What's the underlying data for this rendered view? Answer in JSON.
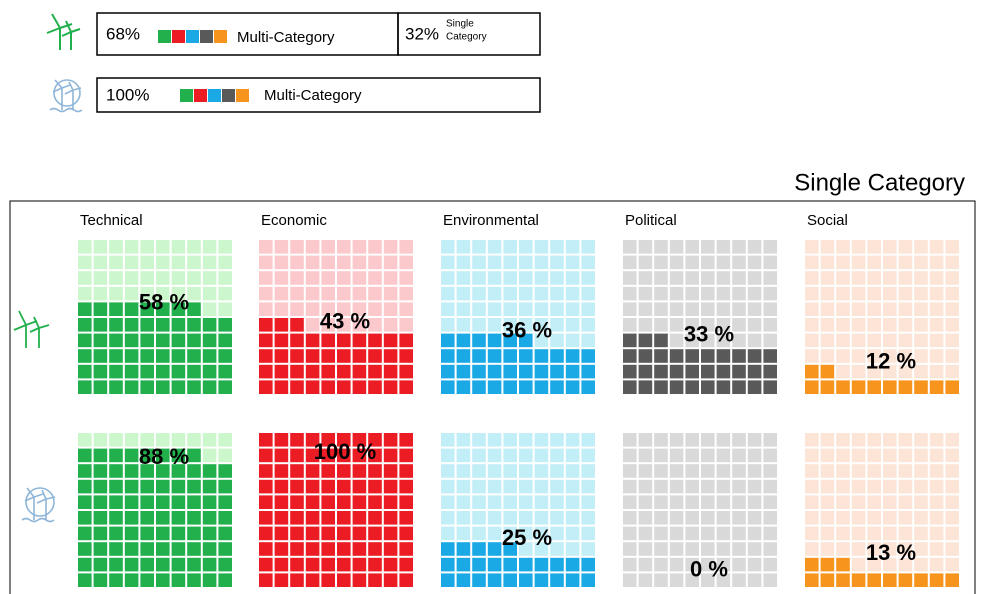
{
  "summary": [
    {
      "percent": "68%",
      "category": "Multi-Category"
    },
    {
      "percent": "32%",
      "category_line1": "Single",
      "category_line2": "Category"
    },
    {
      "percent": "100%",
      "category": "Multi-Category"
    }
  ],
  "chart_data": {
    "type": "waffle",
    "title": "Single Category",
    "categories": [
      "Technical",
      "Economic",
      "Environmental",
      "Political",
      "Social"
    ],
    "colors": [
      "#21b04b",
      "#ec1c24",
      "#1ba9e6",
      "#595959",
      "#f7941d"
    ],
    "light_colors": [
      "#ccf7cc",
      "#fbc8cc",
      "#c2eff7",
      "#d9d9d9",
      "#fce4d6"
    ],
    "series": [
      {
        "values": [
          58,
          43,
          36,
          33,
          12
        ],
        "value_labels": [
          "58 %",
          "43 %",
          "36 %",
          "33 %",
          "12 %"
        ]
      },
      {
        "values": [
          88,
          100,
          25,
          0,
          13
        ],
        "value_labels": [
          "88 %",
          "100 %",
          "25 %",
          "0 %",
          "13 %"
        ]
      }
    ]
  }
}
